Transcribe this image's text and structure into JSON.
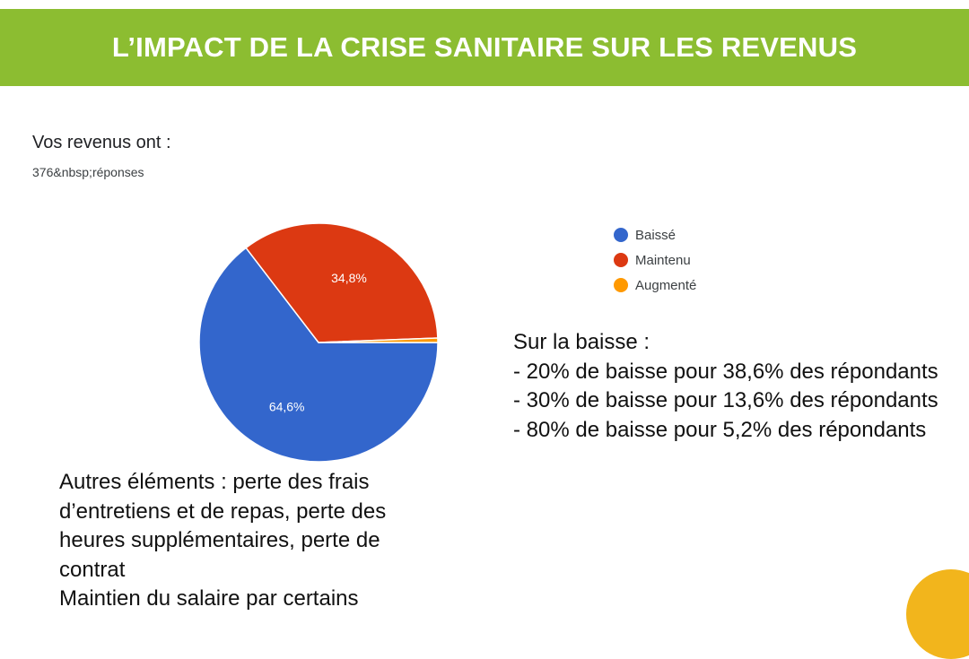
{
  "banner": {
    "title": "L’IMPACT DE LA CRISE SANITAIRE SUR LES REVENUS",
    "color": "#8cbd31"
  },
  "question": "Vos revenus ont :",
  "responses": "376&nbsp;réponses",
  "chart_data": {
    "type": "pie",
    "title": "Vos revenus ont :",
    "slices": [
      {
        "name": "Baissé",
        "value": 64.6,
        "label": "64,6%",
        "color": "#3366cc"
      },
      {
        "name": "Maintenu",
        "value": 34.8,
        "label": "34,8%",
        "color": "#dc3912"
      },
      {
        "name": "Augmenté",
        "value": 0.6,
        "label": "",
        "color": "#ff9900"
      }
    ],
    "legend_placement": "right"
  },
  "notes": {
    "heading": "Sur la baisse :",
    "lines": [
      "- 20% de baisse pour 38,6% des répondants",
      "- 30% de baisse pour 13,6% des répondants",
      "- 80% de baisse pour 5,2% des répondants"
    ]
  },
  "others": {
    "line1": "Autres éléments : perte des frais d’entretiens et de repas, perte des heures supplémentaires, perte de contrat",
    "line2": "Maintien du salaire par certains"
  },
  "decor": {
    "corner_color": "#f2b51c"
  }
}
